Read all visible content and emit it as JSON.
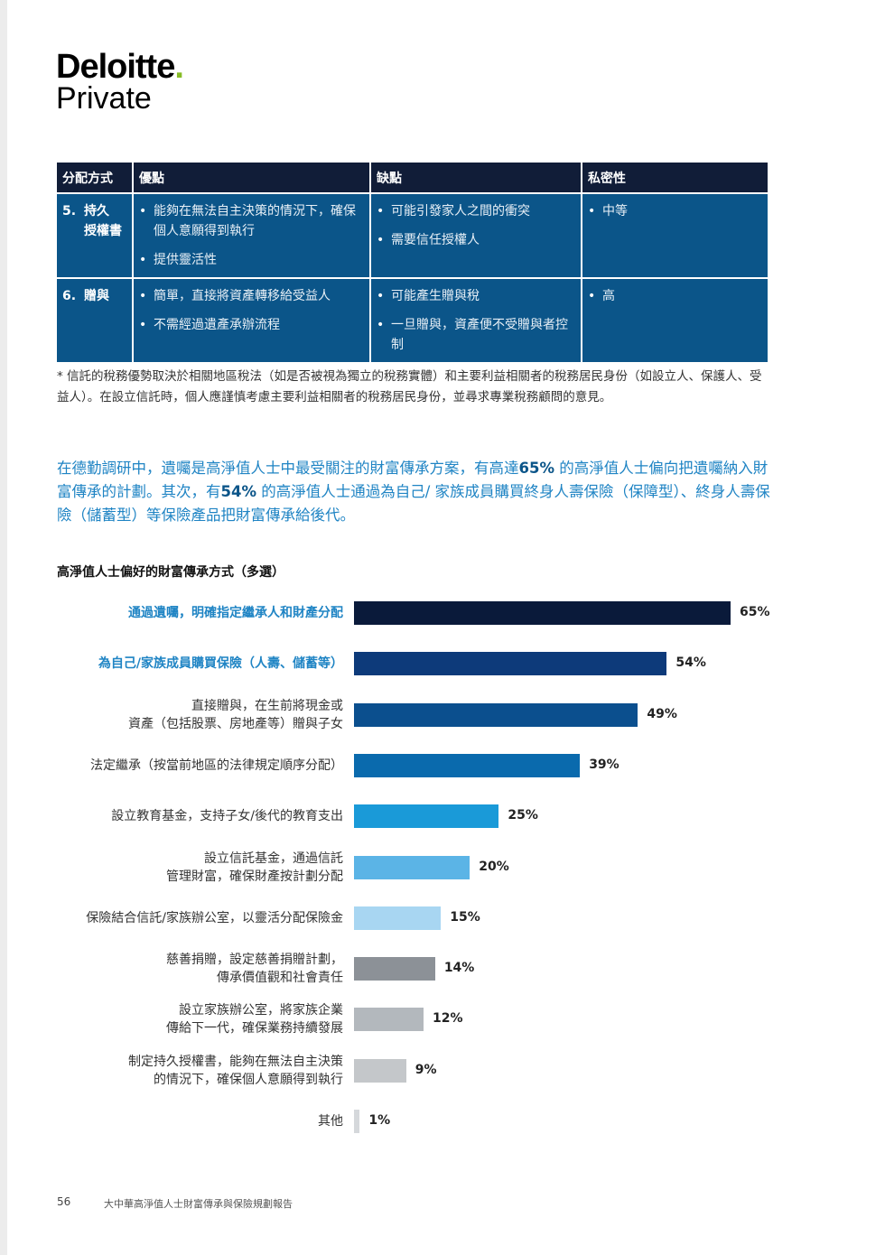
{
  "logo": {
    "brand": "Deloitte",
    "dot": ".",
    "sub": "Private"
  },
  "table": {
    "headers": [
      "分配方式",
      "優點",
      "缺點",
      "私密性"
    ],
    "rows": [
      {
        "num": "5.",
        "method": "持久\n授權書",
        "pros": [
          "能夠在無法自主決策的情況下，確保個人意願得到執行",
          "提供靈活性"
        ],
        "cons": [
          "可能引發家人之間的衝突",
          "需要信任授權人"
        ],
        "privacy": "中等"
      },
      {
        "num": "6.",
        "method": "贈與",
        "pros": [
          "簡單，直接將資產轉移給受益人",
          "不需經過遺產承辦流程"
        ],
        "cons": [
          "可能產生贈與稅",
          "一旦贈與，資產便不受贈與者控制"
        ],
        "privacy": "高"
      }
    ]
  },
  "footnote": "* 信託的稅務優勢取決於相關地區稅法（如是否被視為獨立的稅務實體）和主要利益相關者的稅務居民身份（如設立人、保護人、受益人）。在設立信託時，個人應謹慎考慮主要利益相關者的稅務居民身份，並尋求專業稅務顧問的意見。",
  "intro": {
    "p1": "在德勤調研中，遺囑是高淨值人士中最受關注的財富傳承方案，有高達",
    "v1": "65%",
    "p2": " 的高淨值人士偏向把遺囑納入財富傳承的計劃。其次，有",
    "v2": "54%",
    "p3": " 的高淨值人士通過為自己/ 家族成員購買終身人壽保險（保障型）、終身人壽保險（儲蓄型）等保險產品把財富傳承給後代。"
  },
  "chart_data": {
    "type": "bar",
    "orientation": "horizontal",
    "title": "高淨值人士偏好的財富傳承方式（多選）",
    "categories": [
      "通過遺囑，明確指定繼承人和財產分配",
      "為自己/家族成員購買保險（人壽、儲蓄等）",
      "直接贈與，在生前將現金或\n資產（包括股票、房地產等）贈與子女",
      "法定繼承（按當前地區的法律規定順序分配）",
      "設立教育基金，支持子女/後代的教育支出",
      "設立信託基金，通過信託\n管理財富，確保財產按計劃分配",
      "保險結合信託/家族辦公室，以靈活分配保險金",
      "慈善捐贈，設定慈善捐贈計劃，\n傳承價值觀和社會責任",
      "設立家族辦公室，將家族企業\n傳給下一代，確保業務持續發展",
      "制定持久授權書，能夠在無法自主決策\n的情況下，確保個人意願得到執行",
      "其他"
    ],
    "values": [
      65,
      54,
      49,
      39,
      25,
      20,
      15,
      14,
      12,
      9,
      1
    ],
    "value_labels": [
      "65%",
      "54%",
      "49%",
      "39%",
      "25%",
      "20%",
      "15%",
      "14%",
      "12%",
      "9%",
      "1%"
    ],
    "highlighted": [
      true,
      true,
      false,
      false,
      false,
      false,
      false,
      false,
      false,
      false,
      false
    ],
    "colors": [
      "#0a1a3a",
      "#0d3a7a",
      "#0b4f8e",
      "#0a6aad",
      "#1a9ad8",
      "#5bb4e6",
      "#a8d6f2",
      "#8c9197",
      "#b3b8bd",
      "#c4c7ca",
      "#d5d8db"
    ],
    "xlim": [
      0,
      65
    ],
    "xlabel": "",
    "ylabel": ""
  },
  "footer": {
    "page": "56",
    "title": "大中華高淨值人士財富傳承與保險規劃報告"
  }
}
